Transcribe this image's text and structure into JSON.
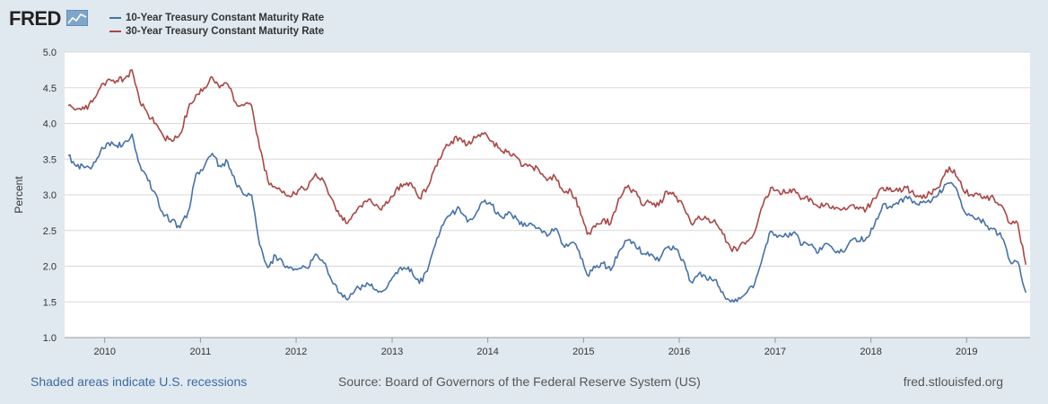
{
  "header": {
    "logo_text": "FRED",
    "logo_icon": "fred-chart-icon"
  },
  "footer": {
    "recessions_note": "Shaded areas indicate U.S. recessions",
    "source": "Source: Board of Governors of the Federal Reserve System (US)",
    "site": "fred.stlouisfed.org"
  },
  "colors": {
    "background": "#e1e9f0",
    "plot_background": "#ffffff",
    "series_10y": "#4572a7",
    "series_30y": "#aa4643",
    "link": "#3b6aa0"
  },
  "chart_data": {
    "type": "line",
    "title": "",
    "xlabel": "",
    "ylabel": "Percent",
    "ylim": [
      1.0,
      5.0
    ],
    "xlim": [
      "2009-08-01",
      "2019-08-31"
    ],
    "y_ticks": [
      "1.0",
      "1.5",
      "2.0",
      "2.5",
      "3.0",
      "3.5",
      "4.0",
      "4.5",
      "5.0"
    ],
    "x_ticks": [
      "2010",
      "2011",
      "2012",
      "2013",
      "2014",
      "2015",
      "2016",
      "2017",
      "2018",
      "2019"
    ],
    "grid": true,
    "legend_position": "top-left",
    "series": [
      {
        "name": "10-Year Treasury Constant Maturity Rate",
        "color": "#4572a7",
        "x": [
          "2009-08",
          "2009-09",
          "2009-10",
          "2009-11",
          "2009-12",
          "2010-01",
          "2010-02",
          "2010-03",
          "2010-04",
          "2010-05",
          "2010-06",
          "2010-07",
          "2010-08",
          "2010-09",
          "2010-10",
          "2010-11",
          "2010-12",
          "2011-01",
          "2011-02",
          "2011-03",
          "2011-04",
          "2011-05",
          "2011-06",
          "2011-07",
          "2011-08",
          "2011-09",
          "2011-10",
          "2011-11",
          "2011-12",
          "2012-01",
          "2012-02",
          "2012-03",
          "2012-04",
          "2012-05",
          "2012-06",
          "2012-07",
          "2012-08",
          "2012-09",
          "2012-10",
          "2012-11",
          "2012-12",
          "2013-01",
          "2013-02",
          "2013-03",
          "2013-04",
          "2013-05",
          "2013-06",
          "2013-07",
          "2013-08",
          "2013-09",
          "2013-10",
          "2013-11",
          "2013-12",
          "2014-01",
          "2014-02",
          "2014-03",
          "2014-04",
          "2014-05",
          "2014-06",
          "2014-07",
          "2014-08",
          "2014-09",
          "2014-10",
          "2014-11",
          "2014-12",
          "2015-01",
          "2015-02",
          "2015-03",
          "2015-04",
          "2015-05",
          "2015-06",
          "2015-07",
          "2015-08",
          "2015-09",
          "2015-10",
          "2015-11",
          "2015-12",
          "2016-01",
          "2016-02",
          "2016-03",
          "2016-04",
          "2016-05",
          "2016-06",
          "2016-07",
          "2016-08",
          "2016-09",
          "2016-10",
          "2016-11",
          "2016-12",
          "2017-01",
          "2017-02",
          "2017-03",
          "2017-04",
          "2017-05",
          "2017-06",
          "2017-07",
          "2017-08",
          "2017-09",
          "2017-10",
          "2017-11",
          "2017-12",
          "2018-01",
          "2018-02",
          "2018-03",
          "2018-04",
          "2018-05",
          "2018-06",
          "2018-07",
          "2018-08",
          "2018-09",
          "2018-10",
          "2018-11",
          "2018-12",
          "2019-01",
          "2019-02",
          "2019-03",
          "2019-04",
          "2019-05",
          "2019-06",
          "2019-07",
          "2019-08"
        ],
        "values": [
          3.55,
          3.4,
          3.38,
          3.4,
          3.6,
          3.73,
          3.69,
          3.73,
          3.85,
          3.42,
          3.2,
          3.01,
          2.7,
          2.65,
          2.54,
          2.76,
          3.29,
          3.39,
          3.58,
          3.41,
          3.46,
          3.17,
          3.0,
          3.0,
          2.3,
          1.98,
          2.15,
          2.01,
          1.98,
          1.97,
          1.97,
          2.17,
          2.05,
          1.8,
          1.62,
          1.53,
          1.68,
          1.72,
          1.75,
          1.65,
          1.72,
          1.91,
          1.98,
          1.96,
          1.76,
          1.93,
          2.3,
          2.58,
          2.74,
          2.81,
          2.62,
          2.72,
          2.9,
          2.86,
          2.71,
          2.72,
          2.71,
          2.56,
          2.6,
          2.54,
          2.42,
          2.53,
          2.3,
          2.33,
          2.21,
          1.88,
          1.98,
          2.04,
          1.94,
          2.2,
          2.36,
          2.32,
          2.17,
          2.17,
          2.07,
          2.26,
          2.24,
          2.09,
          1.78,
          1.89,
          1.81,
          1.81,
          1.64,
          1.5,
          1.56,
          1.63,
          1.76,
          2.14,
          2.49,
          2.43,
          2.42,
          2.48,
          2.3,
          2.3,
          2.19,
          2.32,
          2.21,
          2.2,
          2.36,
          2.35,
          2.4,
          2.58,
          2.86,
          2.84,
          2.87,
          2.98,
          2.91,
          2.89,
          2.89,
          3.0,
          3.15,
          3.12,
          2.83,
          2.71,
          2.68,
          2.57,
          2.53,
          2.4,
          2.07,
          2.06,
          1.63
        ]
      },
      {
        "name": "30-Year Treasury Constant Maturity Rate",
        "color": "#aa4643",
        "x": [
          "2009-08",
          "2009-09",
          "2009-10",
          "2009-11",
          "2009-12",
          "2010-01",
          "2010-02",
          "2010-03",
          "2010-04",
          "2010-05",
          "2010-06",
          "2010-07",
          "2010-08",
          "2010-09",
          "2010-10",
          "2010-11",
          "2010-12",
          "2011-01",
          "2011-02",
          "2011-03",
          "2011-04",
          "2011-05",
          "2011-06",
          "2011-07",
          "2011-08",
          "2011-09",
          "2011-10",
          "2011-11",
          "2011-12",
          "2012-01",
          "2012-02",
          "2012-03",
          "2012-04",
          "2012-05",
          "2012-06",
          "2012-07",
          "2012-08",
          "2012-09",
          "2012-10",
          "2012-11",
          "2012-12",
          "2013-01",
          "2013-02",
          "2013-03",
          "2013-04",
          "2013-05",
          "2013-06",
          "2013-07",
          "2013-08",
          "2013-09",
          "2013-10",
          "2013-11",
          "2013-12",
          "2014-01",
          "2014-02",
          "2014-03",
          "2014-04",
          "2014-05",
          "2014-06",
          "2014-07",
          "2014-08",
          "2014-09",
          "2014-10",
          "2014-11",
          "2014-12",
          "2015-01",
          "2015-02",
          "2015-03",
          "2015-04",
          "2015-05",
          "2015-06",
          "2015-07",
          "2015-08",
          "2015-09",
          "2015-10",
          "2015-11",
          "2015-12",
          "2016-01",
          "2016-02",
          "2016-03",
          "2016-04",
          "2016-05",
          "2016-06",
          "2016-07",
          "2016-08",
          "2016-09",
          "2016-10",
          "2016-11",
          "2016-12",
          "2017-01",
          "2017-02",
          "2017-03",
          "2017-04",
          "2017-05",
          "2017-06",
          "2017-07",
          "2017-08",
          "2017-09",
          "2017-10",
          "2017-11",
          "2017-12",
          "2018-01",
          "2018-02",
          "2018-03",
          "2018-04",
          "2018-05",
          "2018-06",
          "2018-07",
          "2018-08",
          "2018-09",
          "2018-10",
          "2018-11",
          "2018-12",
          "2019-01",
          "2019-02",
          "2019-03",
          "2019-04",
          "2019-05",
          "2019-06",
          "2019-07",
          "2019-08"
        ],
        "values": [
          4.25,
          4.2,
          4.2,
          4.3,
          4.5,
          4.62,
          4.6,
          4.62,
          4.75,
          4.3,
          4.13,
          4.0,
          3.8,
          3.75,
          3.85,
          4.2,
          4.4,
          4.5,
          4.65,
          4.5,
          4.55,
          4.3,
          4.25,
          4.25,
          3.65,
          3.2,
          3.1,
          3.05,
          2.98,
          3.08,
          3.1,
          3.3,
          3.2,
          2.95,
          2.7,
          2.6,
          2.75,
          2.9,
          2.9,
          2.8,
          2.88,
          3.07,
          3.15,
          3.16,
          2.95,
          3.1,
          3.4,
          3.62,
          3.75,
          3.8,
          3.7,
          3.8,
          3.85,
          3.75,
          3.65,
          3.6,
          3.55,
          3.4,
          3.4,
          3.35,
          3.2,
          3.25,
          3.05,
          3.05,
          2.83,
          2.45,
          2.55,
          2.65,
          2.6,
          2.95,
          3.1,
          3.05,
          2.85,
          2.9,
          2.85,
          3.05,
          2.98,
          2.86,
          2.6,
          2.7,
          2.66,
          2.65,
          2.45,
          2.25,
          2.25,
          2.35,
          2.48,
          2.85,
          3.1,
          3.05,
          3.03,
          3.08,
          2.95,
          2.95,
          2.83,
          2.88,
          2.8,
          2.8,
          2.85,
          2.8,
          2.8,
          2.95,
          3.1,
          3.1,
          3.05,
          3.1,
          3.0,
          2.95,
          3.02,
          3.1,
          3.35,
          3.35,
          3.1,
          3.0,
          3.0,
          2.95,
          2.95,
          2.85,
          2.6,
          2.6,
          2.02
        ]
      }
    ]
  }
}
